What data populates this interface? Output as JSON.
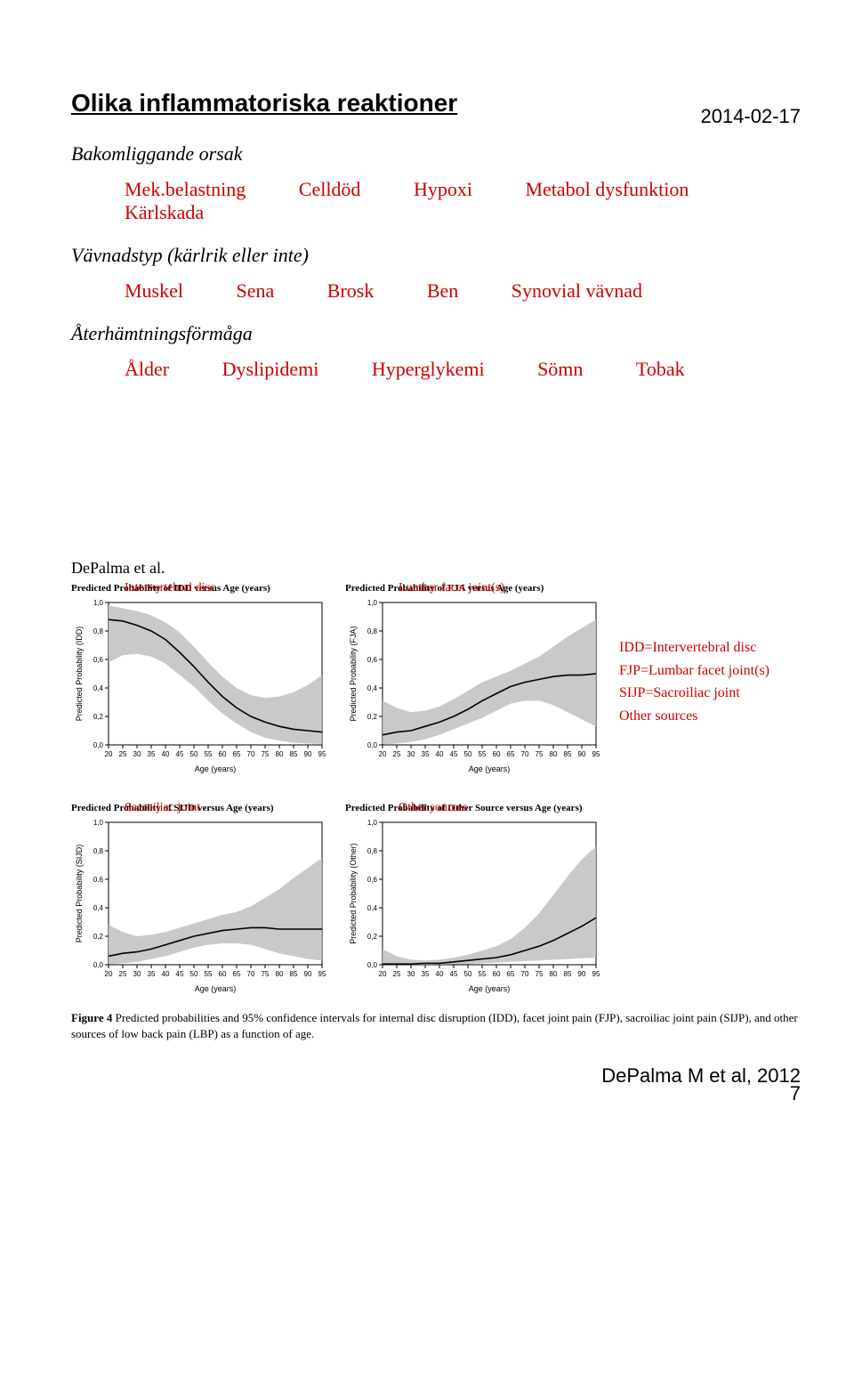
{
  "header": {
    "date": "2014-02-17",
    "page_number": "7"
  },
  "section": {
    "title": "Olika inflammatoriska reaktioner",
    "sub1": "Bakomliggande orsak",
    "row1": [
      "Mek.belastning",
      "Celldöd",
      "Hypoxi",
      "Metabol dysfunktion",
      "Kärlskada"
    ],
    "sub2": "Vävnadstyp (kärlrik eller inte)",
    "row2": [
      "Muskel",
      "Sena",
      "Brosk",
      "Ben",
      "Synovial vävnad"
    ],
    "sub3": "Återhämtningsförmåga",
    "row3": [
      "Ålder",
      "Dyslipidemi",
      "Hyperglykemi",
      "Sömn",
      "Tobak"
    ]
  },
  "depalma_ref": "DePalma et al.",
  "charts": {
    "common": {
      "xlabel": "Age (years)",
      "xlim": [
        20,
        95
      ],
      "xticks": [
        20,
        25,
        30,
        35,
        40,
        45,
        50,
        55,
        60,
        65,
        70,
        75,
        80,
        85,
        90,
        95
      ],
      "ylim": [
        0.0,
        1.0
      ],
      "yticks": [
        0.0,
        0.2,
        0.4,
        0.6,
        0.8,
        1.0
      ],
      "ytick_labels": [
        "0,0",
        "0,2",
        "0,4",
        "0,6",
        "0,8",
        "1,0"
      ],
      "line_color": "#000000",
      "band_color": "#bfbfbf",
      "bg": "#ffffff",
      "line_width": 1.6
    },
    "idd": {
      "title": "Predicted Probability of IDD versus Age (years)",
      "overlay_label": "Intervertebral disc",
      "ylabel": "Predicted Probability (IDD)",
      "line": [
        [
          20,
          0.88
        ],
        [
          25,
          0.87
        ],
        [
          30,
          0.84
        ],
        [
          35,
          0.8
        ],
        [
          40,
          0.74
        ],
        [
          45,
          0.65
        ],
        [
          50,
          0.55
        ],
        [
          55,
          0.44
        ],
        [
          60,
          0.34
        ],
        [
          65,
          0.26
        ],
        [
          70,
          0.2
        ],
        [
          75,
          0.16
        ],
        [
          80,
          0.13
        ],
        [
          85,
          0.11
        ],
        [
          90,
          0.1
        ],
        [
          95,
          0.09
        ]
      ],
      "upper": [
        [
          20,
          0.98
        ],
        [
          25,
          0.96
        ],
        [
          30,
          0.94
        ],
        [
          35,
          0.91
        ],
        [
          40,
          0.86
        ],
        [
          45,
          0.79
        ],
        [
          50,
          0.69
        ],
        [
          55,
          0.58
        ],
        [
          60,
          0.48
        ],
        [
          65,
          0.4
        ],
        [
          70,
          0.35
        ],
        [
          75,
          0.33
        ],
        [
          80,
          0.34
        ],
        [
          85,
          0.37
        ],
        [
          90,
          0.42
        ],
        [
          95,
          0.49
        ]
      ],
      "lower": [
        [
          20,
          0.58
        ],
        [
          25,
          0.63
        ],
        [
          30,
          0.64
        ],
        [
          35,
          0.62
        ],
        [
          40,
          0.57
        ],
        [
          45,
          0.49
        ],
        [
          50,
          0.41
        ],
        [
          55,
          0.31
        ],
        [
          60,
          0.22
        ],
        [
          65,
          0.15
        ],
        [
          70,
          0.09
        ],
        [
          75,
          0.05
        ],
        [
          80,
          0.03
        ],
        [
          85,
          0.015
        ],
        [
          90,
          0.01
        ],
        [
          95,
          0.007
        ]
      ]
    },
    "fja": {
      "title": "Predicted Probability of FJA versus Age (years)",
      "overlay_label": "Lumbar facet joint(s)",
      "ylabel": "Predicted Probability (FJA)",
      "line": [
        [
          20,
          0.07
        ],
        [
          25,
          0.09
        ],
        [
          30,
          0.1
        ],
        [
          35,
          0.13
        ],
        [
          40,
          0.16
        ],
        [
          45,
          0.2
        ],
        [
          50,
          0.25
        ],
        [
          55,
          0.31
        ],
        [
          60,
          0.36
        ],
        [
          65,
          0.41
        ],
        [
          70,
          0.44
        ],
        [
          75,
          0.46
        ],
        [
          80,
          0.48
        ],
        [
          85,
          0.49
        ],
        [
          90,
          0.49
        ],
        [
          95,
          0.5
        ]
      ],
      "upper": [
        [
          20,
          0.31
        ],
        [
          25,
          0.26
        ],
        [
          30,
          0.23
        ],
        [
          35,
          0.24
        ],
        [
          40,
          0.27
        ],
        [
          45,
          0.32
        ],
        [
          50,
          0.38
        ],
        [
          55,
          0.44
        ],
        [
          60,
          0.48
        ],
        [
          65,
          0.52
        ],
        [
          70,
          0.57
        ],
        [
          75,
          0.62
        ],
        [
          80,
          0.69
        ],
        [
          85,
          0.76
        ],
        [
          90,
          0.82
        ],
        [
          95,
          0.88
        ]
      ],
      "lower": [
        [
          20,
          0.005
        ],
        [
          25,
          0.01
        ],
        [
          30,
          0.02
        ],
        [
          35,
          0.04
        ],
        [
          40,
          0.07
        ],
        [
          45,
          0.11
        ],
        [
          50,
          0.15
        ],
        [
          55,
          0.19
        ],
        [
          60,
          0.24
        ],
        [
          65,
          0.29
        ],
        [
          70,
          0.31
        ],
        [
          75,
          0.31
        ],
        [
          80,
          0.28
        ],
        [
          85,
          0.23
        ],
        [
          90,
          0.18
        ],
        [
          95,
          0.13
        ]
      ]
    },
    "sijd": {
      "title": "Predicted Probability of SIJD versus Age (years)",
      "overlay_label": "Sacroiliac joint",
      "ylabel": "Predicted Probability (SIJD)",
      "line": [
        [
          20,
          0.06
        ],
        [
          25,
          0.08
        ],
        [
          30,
          0.09
        ],
        [
          35,
          0.11
        ],
        [
          40,
          0.14
        ],
        [
          45,
          0.17
        ],
        [
          50,
          0.2
        ],
        [
          55,
          0.22
        ],
        [
          60,
          0.24
        ],
        [
          65,
          0.25
        ],
        [
          70,
          0.26
        ],
        [
          75,
          0.26
        ],
        [
          80,
          0.25
        ],
        [
          85,
          0.25
        ],
        [
          90,
          0.25
        ],
        [
          95,
          0.25
        ]
      ],
      "upper": [
        [
          20,
          0.28
        ],
        [
          25,
          0.23
        ],
        [
          30,
          0.2
        ],
        [
          35,
          0.21
        ],
        [
          40,
          0.23
        ],
        [
          45,
          0.26
        ],
        [
          50,
          0.29
        ],
        [
          55,
          0.32
        ],
        [
          60,
          0.35
        ],
        [
          65,
          0.37
        ],
        [
          70,
          0.41
        ],
        [
          75,
          0.47
        ],
        [
          80,
          0.53
        ],
        [
          85,
          0.61
        ],
        [
          90,
          0.68
        ],
        [
          95,
          0.75
        ]
      ],
      "lower": [
        [
          20,
          0.005
        ],
        [
          25,
          0.01
        ],
        [
          30,
          0.02
        ],
        [
          35,
          0.04
        ],
        [
          40,
          0.06
        ],
        [
          45,
          0.09
        ],
        [
          50,
          0.12
        ],
        [
          55,
          0.14
        ],
        [
          60,
          0.15
        ],
        [
          65,
          0.15
        ],
        [
          70,
          0.14
        ],
        [
          75,
          0.11
        ],
        [
          80,
          0.08
        ],
        [
          85,
          0.06
        ],
        [
          90,
          0.04
        ],
        [
          95,
          0.03
        ]
      ]
    },
    "other": {
      "title": "Predicted Probability of Other Source versus Age (years)",
      "overlay_label": "Other sources",
      "ylabel": "Predicted Probability (Other)",
      "line": [
        [
          20,
          0.005
        ],
        [
          25,
          0.005
        ],
        [
          30,
          0.005
        ],
        [
          35,
          0.01
        ],
        [
          40,
          0.01
        ],
        [
          45,
          0.02
        ],
        [
          50,
          0.03
        ],
        [
          55,
          0.04
        ],
        [
          60,
          0.05
        ],
        [
          65,
          0.07
        ],
        [
          70,
          0.1
        ],
        [
          75,
          0.13
        ],
        [
          80,
          0.17
        ],
        [
          85,
          0.22
        ],
        [
          90,
          0.27
        ],
        [
          95,
          0.33
        ]
      ],
      "upper": [
        [
          20,
          0.11
        ],
        [
          25,
          0.06
        ],
        [
          30,
          0.035
        ],
        [
          35,
          0.03
        ],
        [
          40,
          0.035
        ],
        [
          45,
          0.05
        ],
        [
          50,
          0.07
        ],
        [
          55,
          0.1
        ],
        [
          60,
          0.13
        ],
        [
          65,
          0.18
        ],
        [
          70,
          0.26
        ],
        [
          75,
          0.36
        ],
        [
          80,
          0.49
        ],
        [
          85,
          0.62
        ],
        [
          90,
          0.74
        ],
        [
          95,
          0.83
        ]
      ],
      "lower": [
        [
          20,
          0.0
        ],
        [
          25,
          0.0
        ],
        [
          30,
          0.0
        ],
        [
          35,
          0.0
        ],
        [
          40,
          0.001
        ],
        [
          45,
          0.003
        ],
        [
          50,
          0.005
        ],
        [
          55,
          0.01
        ],
        [
          60,
          0.015
        ],
        [
          65,
          0.02
        ],
        [
          70,
          0.025
        ],
        [
          75,
          0.03
        ],
        [
          80,
          0.035
        ],
        [
          85,
          0.04
        ],
        [
          90,
          0.045
        ],
        [
          95,
          0.05
        ]
      ]
    }
  },
  "legend": {
    "l1": "IDD=Intervertebral disc",
    "l2": "FJP=Lumbar facet joint(s)",
    "l3": "SIJP=Sacroiliac joint",
    "l4": "Other sources"
  },
  "figure_caption": "Figure 4 Predicted probabilities and 95% confidence intervals for internal disc disruption (IDD), facet joint pain (FJP), sacroiliac joint pain (SIJP), and other sources of low back pain (LBP) as a function of age.",
  "citation": "DePalma M et al, 2012"
}
